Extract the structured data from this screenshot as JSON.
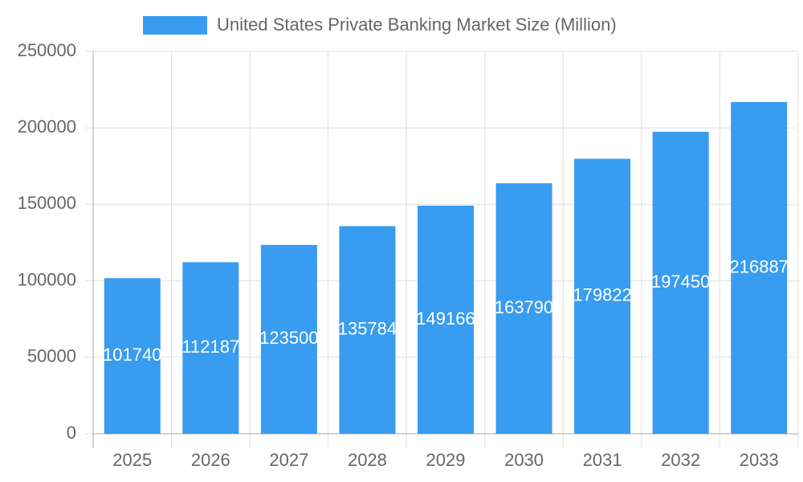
{
  "chart_data": {
    "type": "bar",
    "categories": [
      "2025",
      "2026",
      "2027",
      "2028",
      "2029",
      "2030",
      "2031",
      "2032",
      "2033"
    ],
    "series": [
      {
        "name": "United States Private Banking Market Size (Million)",
        "color": "#389cf0",
        "values": [
          101740,
          112187,
          123500,
          135784,
          149166,
          163790,
          179822,
          197450,
          216887
        ]
      }
    ],
    "ylim": [
      0,
      250000
    ],
    "yticks": [
      0,
      50000,
      100000,
      150000,
      200000,
      250000
    ],
    "grid": true,
    "legend": "top"
  }
}
